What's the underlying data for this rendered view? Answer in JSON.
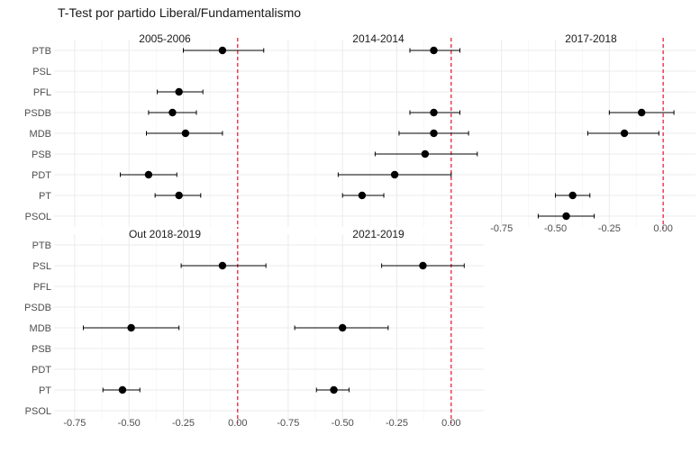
{
  "chart_data": {
    "type": "scatter",
    "subtype": "point-errorbar-facets",
    "title": "T-Test por partido Liberal/Fundamentalismo",
    "xlabel": "",
    "ylabel": "",
    "xlim": [
      -0.82,
      0.15
    ],
    "x_ticks": [
      -0.75,
      -0.5,
      -0.25,
      0.0
    ],
    "x_tick_labels": [
      "-0.75",
      "-0.50",
      "-0.25",
      "0.00"
    ],
    "categories": [
      "PTB",
      "PSL",
      "PFL",
      "PSDB",
      "MDB",
      "PSB",
      "PDT",
      "PT",
      "PSOL"
    ],
    "reference_line": {
      "x": 0,
      "style": "dashed",
      "color": "#e8112d"
    },
    "grid": true,
    "colors": {
      "point": "#000000",
      "grid": "#ebebeb",
      "text": "#4d4d4d"
    },
    "panels": [
      {
        "label": "2005-2006",
        "points": [
          {
            "party": "PTB",
            "estimate": -0.07,
            "low": -0.25,
            "high": 0.12
          },
          {
            "party": "PFL",
            "estimate": -0.27,
            "low": -0.37,
            "high": -0.16
          },
          {
            "party": "PSDB",
            "estimate": -0.3,
            "low": -0.41,
            "high": -0.19
          },
          {
            "party": "MDB",
            "estimate": -0.24,
            "low": -0.42,
            "high": -0.07
          },
          {
            "party": "PDT",
            "estimate": -0.41,
            "low": -0.54,
            "high": -0.28
          },
          {
            "party": "PT",
            "estimate": -0.27,
            "low": -0.38,
            "high": -0.17
          }
        ]
      },
      {
        "label": "2014-2014",
        "points": [
          {
            "party": "PTB",
            "estimate": -0.08,
            "low": -0.19,
            "high": 0.04
          },
          {
            "party": "PSDB",
            "estimate": -0.08,
            "low": -0.19,
            "high": 0.04
          },
          {
            "party": "MDB",
            "estimate": -0.08,
            "low": -0.24,
            "high": 0.08
          },
          {
            "party": "PSB",
            "estimate": -0.12,
            "low": -0.35,
            "high": 0.12
          },
          {
            "party": "PDT",
            "estimate": -0.26,
            "low": -0.52,
            "high": 0.0
          },
          {
            "party": "PT",
            "estimate": -0.41,
            "low": -0.5,
            "high": -0.31
          }
        ]
      },
      {
        "label": "2017-2018",
        "points": [
          {
            "party": "PSDB",
            "estimate": -0.1,
            "low": -0.25,
            "high": 0.05
          },
          {
            "party": "MDB",
            "estimate": -0.18,
            "low": -0.35,
            "high": -0.02
          },
          {
            "party": "PT",
            "estimate": -0.42,
            "low": -0.5,
            "high": -0.34
          },
          {
            "party": "PSOL",
            "estimate": -0.45,
            "low": -0.58,
            "high": -0.32
          }
        ]
      },
      {
        "label": "Out 2018-2019",
        "points": [
          {
            "party": "PSL",
            "estimate": -0.07,
            "low": -0.26,
            "high": 0.13
          },
          {
            "party": "MDB",
            "estimate": -0.49,
            "low": -0.71,
            "high": -0.27
          },
          {
            "party": "PT",
            "estimate": -0.53,
            "low": -0.62,
            "high": -0.45
          }
        ]
      },
      {
        "label": "2021-2019",
        "points": [
          {
            "party": "PSL",
            "estimate": -0.13,
            "low": -0.32,
            "high": 0.06
          },
          {
            "party": "MDB",
            "estimate": -0.5,
            "low": -0.72,
            "high": -0.29
          },
          {
            "party": "PT",
            "estimate": -0.54,
            "low": -0.62,
            "high": -0.47
          }
        ]
      }
    ]
  }
}
